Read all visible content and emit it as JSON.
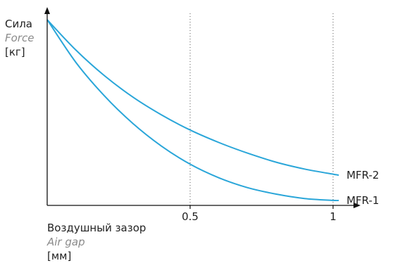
{
  "chart_data": {
    "type": "line",
    "title": "",
    "ylabel": {
      "ru": "Сила",
      "en": "Force",
      "unit": "[кг]"
    },
    "xlabel": {
      "ru": "Воздушный зазор",
      "en": "Air gap",
      "unit": "[мм]"
    },
    "x_ticks": [
      {
        "value": 0.5,
        "label": "0.5"
      },
      {
        "value": 1,
        "label": "1"
      }
    ],
    "xlim": [
      0,
      1.1
    ],
    "grid": "vertical dotted lines at x ticks",
    "series": [
      {
        "name": "MFR-2",
        "x": [
          0,
          0.1,
          0.2,
          0.3,
          0.4,
          0.5,
          0.6,
          0.7,
          0.8,
          0.9,
          1.0,
          1.02
        ],
        "y": [
          1.0,
          0.837,
          0.699,
          0.583,
          0.487,
          0.406,
          0.339,
          0.282,
          0.233,
          0.196,
          0.168,
          0.163
        ]
      },
      {
        "name": "MFR-1",
        "x": [
          0,
          0.1,
          0.2,
          0.3,
          0.4,
          0.5,
          0.6,
          0.7,
          0.8,
          0.9,
          1.0,
          1.02
        ],
        "y": [
          1.0,
          0.771,
          0.59,
          0.441,
          0.319,
          0.222,
          0.149,
          0.096,
          0.061,
          0.037,
          0.027,
          0.027
        ]
      }
    ],
    "colors": {
      "series": "#2aa6d9",
      "axis": "#111111",
      "grid": "#555555"
    }
  }
}
